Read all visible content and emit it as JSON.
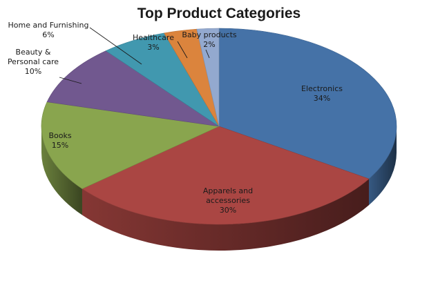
{
  "chart_data": {
    "type": "pie",
    "title": "Top Product Categories",
    "slices": [
      {
        "label": "Electronics",
        "percent_label": "34%",
        "value": 34,
        "color": "#4572A7",
        "label_lines": [
          "Electronics",
          "34%"
        ]
      },
      {
        "label": "Apparels and accessories",
        "percent_label": "30%",
        "value": 30,
        "color": "#AA4643",
        "label_lines": [
          "Apparels and",
          "accessories",
          "30%"
        ]
      },
      {
        "label": "Books",
        "percent_label": "15%",
        "value": 15,
        "color": "#89A54E",
        "label_lines": [
          "Books",
          "15%"
        ]
      },
      {
        "label": "Beauty & Personal care",
        "percent_label": "10%",
        "value": 10,
        "color": "#71588F",
        "label_lines": [
          "Beauty &",
          "Personal care",
          "10%"
        ]
      },
      {
        "label": "Home and Furnishing",
        "percent_label": "6%",
        "value": 6,
        "color": "#4198AF",
        "label_lines": [
          "Home and Furnishing",
          "6%"
        ]
      },
      {
        "label": "Healthcare",
        "percent_label": "3%",
        "value": 3,
        "color": "#DB843D",
        "label_lines": [
          "Healthcare",
          "3%"
        ]
      },
      {
        "label": "Baby products",
        "percent_label": "2%",
        "value": 2,
        "color": "#93A9CF",
        "label_lines": [
          "Baby products",
          "2%"
        ]
      }
    ],
    "style": "3d-pie",
    "legend": "none",
    "labels": "outside-with-leader-lines-for-small-slices"
  }
}
